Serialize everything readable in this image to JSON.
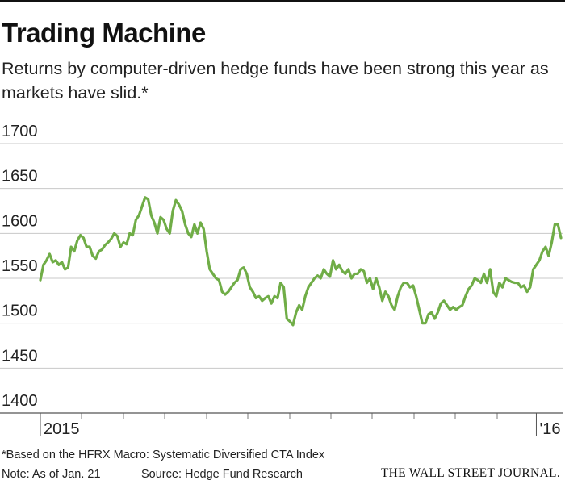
{
  "chart_data": {
    "type": "line",
    "title": "Trading Machine",
    "subtitle": "Returns by computer-driven hedge funds have been strong this year as markets have slid.*",
    "footnote": "*Based on the HFRX Macro: Systematic Diversified CTA Index",
    "note": "Note: As of Jan. 21",
    "source": "Source: Hedge Fund Research",
    "brand": "THE WALL STREET JOURNAL.",
    "color": "#70ad47",
    "grid": true,
    "ylim": [
      1400,
      1700
    ],
    "yticks": [
      1400,
      1450,
      1500,
      1550,
      1600,
      1650,
      1700
    ],
    "categories": [
      "2015",
      null,
      null,
      null,
      null,
      null,
      null,
      null,
      null,
      null,
      null,
      null,
      null,
      null,
      null,
      null,
      null,
      null,
      null,
      null,
      null,
      null,
      null,
      null,
      null,
      null,
      null,
      null,
      null,
      null,
      null,
      null,
      null,
      null,
      null,
      null,
      null,
      null,
      null,
      null,
      null,
      null,
      null,
      null,
      null,
      null,
      null,
      null,
      null,
      null,
      null,
      null,
      null,
      null,
      null,
      null,
      null,
      null,
      null,
      null,
      null,
      null,
      null,
      null,
      null,
      null,
      null,
      null,
      null,
      null,
      null,
      null,
      null,
      null,
      null,
      null,
      null,
      null,
      null,
      null,
      null,
      null,
      null,
      null,
      null,
      null,
      null,
      null,
      null,
      null,
      null,
      null,
      null,
      null,
      null,
      null,
      null,
      null,
      null,
      null,
      null,
      null,
      null,
      null,
      null,
      null,
      null,
      null,
      null,
      null,
      null,
      null,
      null,
      null,
      null,
      null,
      null,
      null,
      null,
      null,
      null,
      null,
      null,
      null,
      null,
      null,
      null,
      null,
      null,
      null,
      null,
      null,
      null,
      null,
      null,
      null,
      null,
      null,
      null,
      null,
      null,
      null,
      null,
      null,
      null,
      null,
      null,
      null,
      null,
      null,
      null,
      null,
      null,
      null,
      null,
      null,
      null,
      null,
      null,
      null,
      null,
      "'16",
      null,
      null,
      null,
      null,
      null,
      null,
      null,
      null
    ],
    "values": [
      1548,
      1565,
      1570,
      1577,
      1568,
      1570,
      1565,
      1568,
      1560,
      1562,
      1585,
      1580,
      1592,
      1598,
      1595,
      1585,
      1585,
      1575,
      1572,
      1580,
      1582,
      1587,
      1590,
      1594,
      1600,
      1597,
      1585,
      1590,
      1588,
      1600,
      1598,
      1615,
      1620,
      1630,
      1640,
      1638,
      1620,
      1612,
      1600,
      1618,
      1615,
      1605,
      1600,
      1625,
      1637,
      1632,
      1625,
      1610,
      1600,
      1596,
      1610,
      1600,
      1612,
      1605,
      1580,
      1560,
      1555,
      1550,
      1548,
      1535,
      1532,
      1535,
      1540,
      1545,
      1548,
      1560,
      1562,
      1555,
      1540,
      1535,
      1528,
      1530,
      1525,
      1528,
      1530,
      1522,
      1530,
      1528,
      1545,
      1540,
      1505,
      1502,
      1498,
      1512,
      1520,
      1515,
      1530,
      1540,
      1545,
      1550,
      1553,
      1550,
      1560,
      1555,
      1552,
      1570,
      1560,
      1565,
      1558,
      1555,
      1560,
      1550,
      1555,
      1555,
      1560,
      1558,
      1545,
      1550,
      1538,
      1550,
      1540,
      1525,
      1535,
      1530,
      1520,
      1515,
      1530,
      1540,
      1545,
      1545,
      1540,
      1542,
      1530,
      1515,
      1500,
      1500,
      1510,
      1512,
      1505,
      1512,
      1522,
      1525,
      1520,
      1515,
      1518,
      1515,
      1518,
      1520,
      1530,
      1538,
      1542,
      1550,
      1548,
      1545,
      1555,
      1545,
      1560,
      1535,
      1530,
      1545,
      1540,
      1550,
      1548,
      1546,
      1545,
      1545,
      1540,
      1542,
      1535,
      1540,
      1560,
      1565,
      1570,
      1580,
      1585,
      1575,
      1590,
      1610,
      1610,
      1595
    ]
  }
}
